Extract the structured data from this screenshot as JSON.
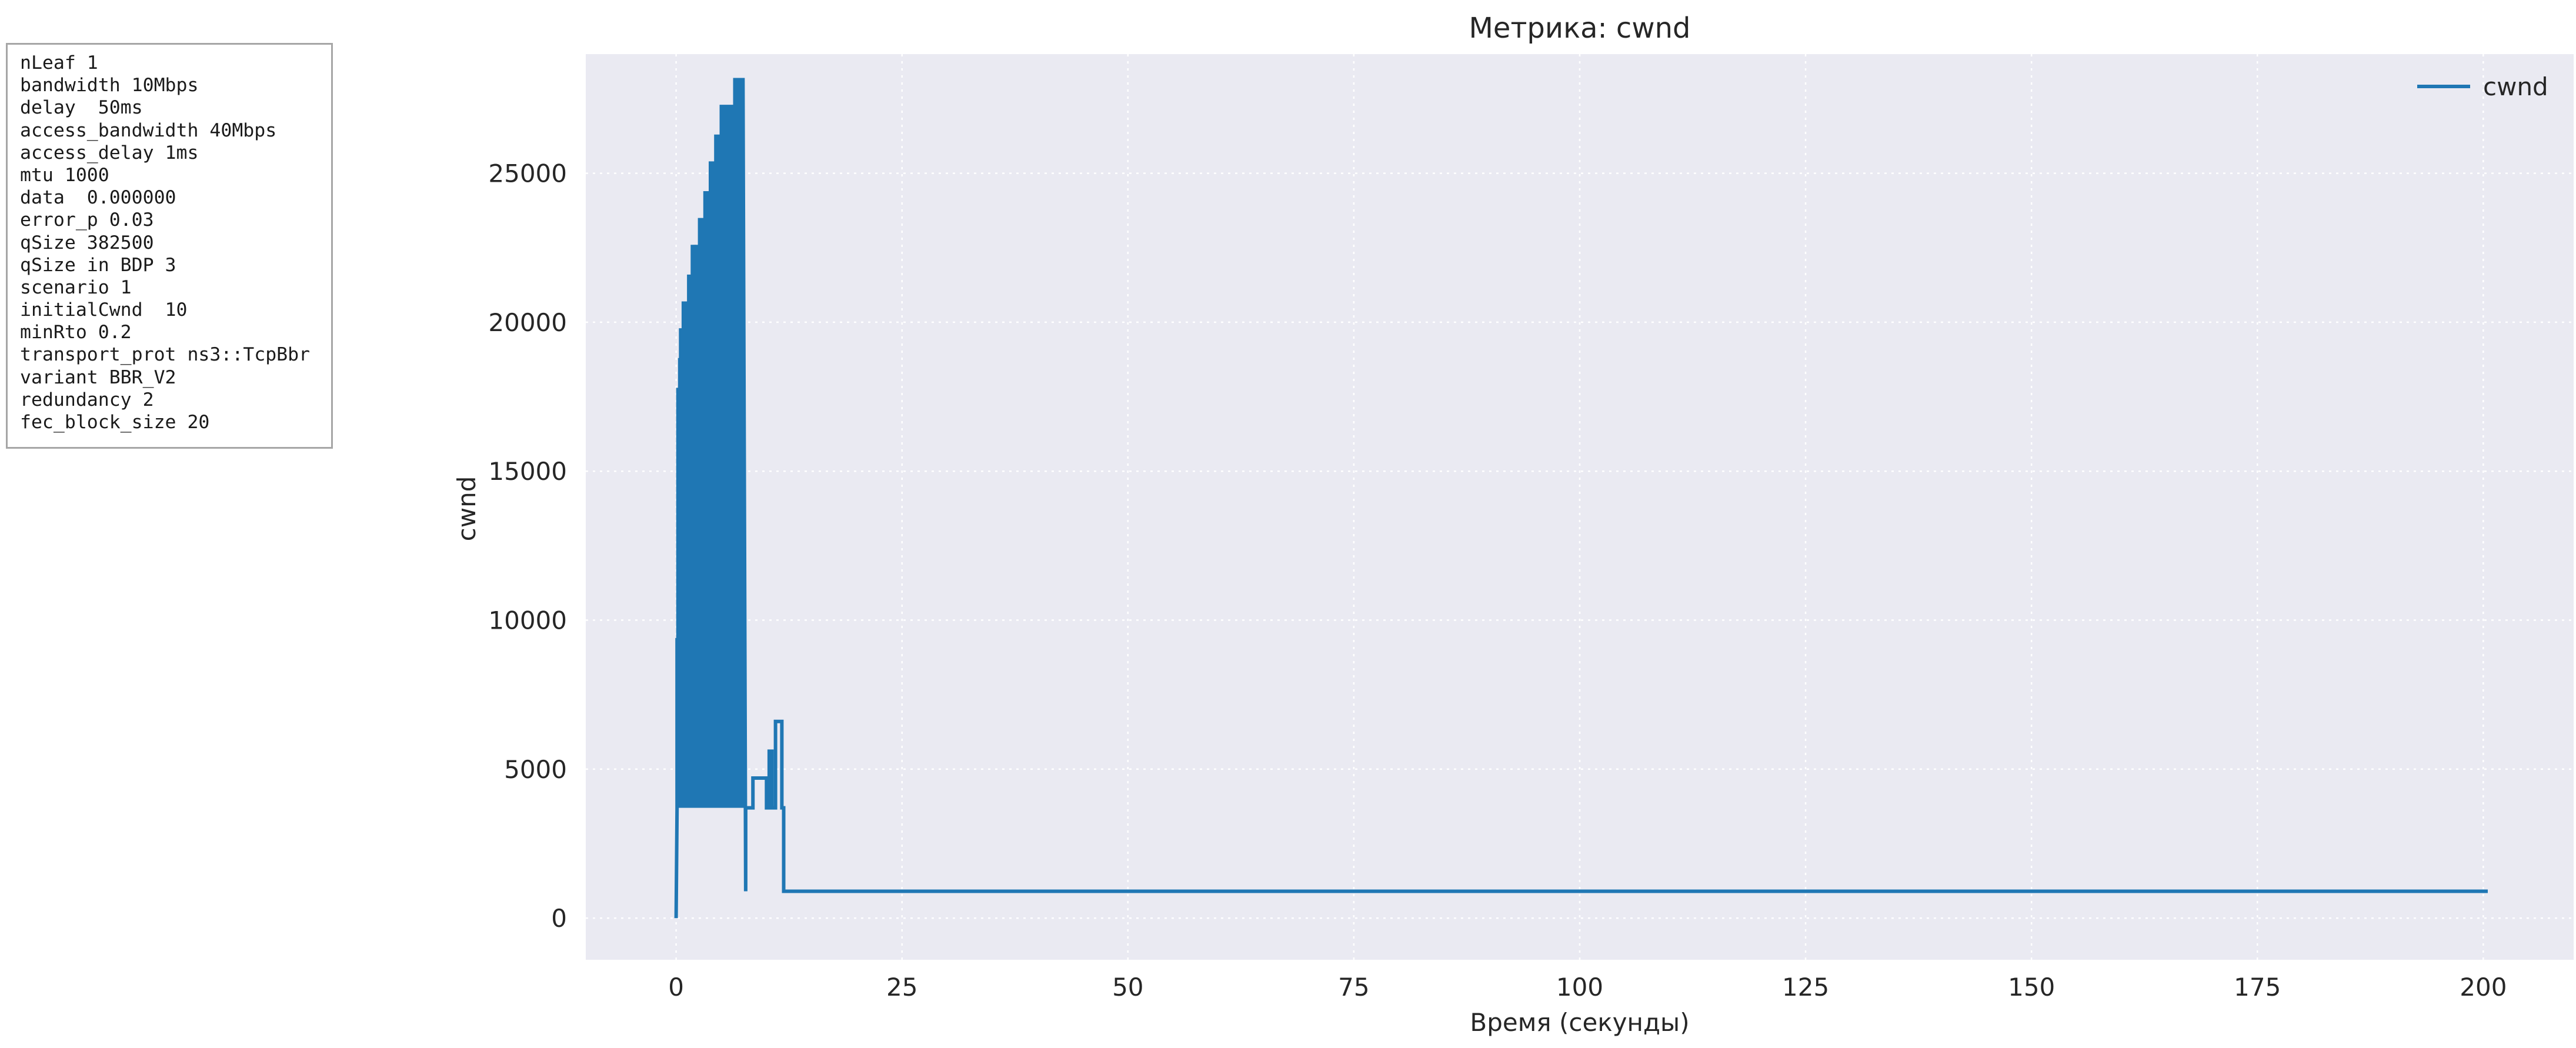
{
  "params_box": {
    "lines": [
      "nLeaf 1",
      "bandwidth 10Mbps",
      "delay  50ms",
      "access_bandwidth 40Mbps",
      "access_delay 1ms",
      "mtu 1000",
      "data  0.000000",
      "error_p 0.03",
      "qSize 382500",
      "qSize in BDP 3",
      "scenario 1",
      "initialCwnd  10",
      "minRto 0.2",
      "transport_prot ns3::TcpBbr",
      "variant BBR_V2",
      "redundancy 2",
      "fec_block_size 20"
    ]
  },
  "chart_data": {
    "type": "line",
    "title": "Метрика: cwnd",
    "xlabel": "Время (секунды)",
    "ylabel": "cwnd",
    "xlim": [
      -10,
      210
    ],
    "ylim": [
      -1400,
      29000
    ],
    "xticks": [
      0,
      25,
      50,
      75,
      100,
      125,
      150,
      175,
      200
    ],
    "yticks": [
      0,
      5000,
      10000,
      15000,
      20000,
      25000
    ],
    "grid": true,
    "legend": "top-right",
    "colors": {
      "line": "#1f77b4",
      "background": "#eaeaf2",
      "grid": "#ffffff"
    },
    "series": [
      {
        "name": "cwnd",
        "x": [
          0.0,
          0.1,
          0.1,
          0.2,
          0.2,
          0.4,
          0.4,
          0.5,
          0.5,
          0.6,
          0.6,
          0.8,
          0.8,
          1.0,
          1.0,
          1.2,
          1.2,
          1.4,
          1.4,
          1.6,
          1.6,
          1.8,
          1.8,
          2.0,
          2.0,
          2.3,
          2.3,
          2.6,
          2.6,
          2.9,
          2.9,
          3.2,
          3.2,
          3.5,
          3.5,
          3.8,
          3.8,
          4.1,
          4.1,
          4.4,
          4.4,
          4.7,
          4.7,
          5.0,
          5.0,
          5.3,
          5.3,
          5.6,
          5.6,
          5.9,
          5.9,
          6.2,
          6.2,
          6.5,
          6.5,
          6.8,
          6.8,
          7.1,
          7.1,
          7.4,
          7.4,
          7.7,
          7.7,
          7.9,
          7.9,
          8.5,
          8.5,
          9.0,
          9.0,
          10.0,
          10.0,
          10.3,
          10.3,
          10.6,
          10.6,
          11.0,
          11.0,
          11.7,
          11.7,
          11.9,
          11.9,
          12.1,
          12.1,
          200.5
        ],
        "values": [
          0,
          3700,
          9400,
          3700,
          17800,
          3700,
          18800,
          3700,
          19800,
          3700,
          10300,
          3700,
          20700,
          3700,
          20700,
          3700,
          20700,
          3700,
          21600,
          3700,
          21600,
          3700,
          22600,
          3700,
          22600,
          3700,
          22600,
          3700,
          23500,
          3700,
          23500,
          3700,
          24400,
          3700,
          24400,
          3700,
          25400,
          3700,
          25400,
          3700,
          26300,
          3700,
          26300,
          3700,
          27300,
          3700,
          27300,
          3700,
          27300,
          3700,
          27300,
          3700,
          27300,
          3700,
          28200,
          3700,
          28200,
          3700,
          28200,
          3700,
          28200,
          900,
          3700,
          3700,
          3700,
          3700,
          4700,
          4700,
          4700,
          4700,
          3700,
          3700,
          5600,
          5600,
          3700,
          3700,
          6600,
          6600,
          3700,
          3700,
          900,
          900,
          900,
          900
        ]
      }
    ]
  }
}
